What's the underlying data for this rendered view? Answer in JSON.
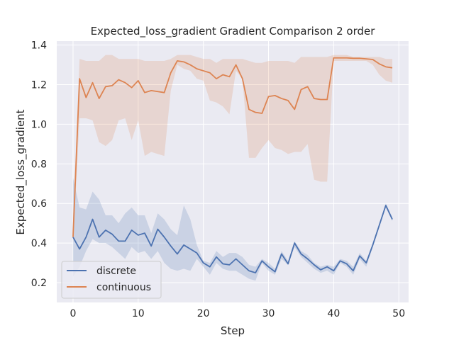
{
  "chart_data": {
    "type": "line",
    "title": "Expected_loss_gradient Gradient Comparison 2 order",
    "xlabel": "Step",
    "ylabel": "Expected_loss_gradient",
    "xlim": [
      -2.5,
      51.5
    ],
    "ylim": [
      0.1,
      1.42
    ],
    "xticks": [
      0,
      10,
      20,
      30,
      40,
      50
    ],
    "yticks": [
      0.2,
      0.4,
      0.6,
      0.8,
      1.0,
      1.2,
      1.4
    ],
    "xtick_labels": [
      "0",
      "10",
      "20",
      "30",
      "40",
      "50"
    ],
    "ytick_labels": [
      "0.2",
      "0.4",
      "0.6",
      "0.8",
      "1.0",
      "1.2",
      "1.4"
    ],
    "grid": true,
    "legend_position": "lower-left",
    "background": "#eaeaf2",
    "x": [
      0,
      1,
      2,
      3,
      4,
      5,
      6,
      7,
      8,
      9,
      10,
      11,
      12,
      13,
      14,
      15,
      16,
      17,
      18,
      19,
      20,
      21,
      22,
      23,
      24,
      25,
      26,
      27,
      28,
      29,
      30,
      31,
      32,
      33,
      34,
      35,
      36,
      37,
      38,
      39,
      40,
      41,
      42,
      43,
      44,
      45,
      46,
      47,
      48,
      49
    ],
    "series": [
      {
        "name": "discrete",
        "color": "#4c72b0",
        "values": [
          0.43,
          0.37,
          0.43,
          0.52,
          0.43,
          0.465,
          0.445,
          0.41,
          0.41,
          0.465,
          0.44,
          0.45,
          0.385,
          0.47,
          0.43,
          0.385,
          0.345,
          0.39,
          0.37,
          0.35,
          0.3,
          0.28,
          0.33,
          0.295,
          0.29,
          0.32,
          0.29,
          0.26,
          0.25,
          0.31,
          0.28,
          0.255,
          0.345,
          0.295,
          0.4,
          0.345,
          0.32,
          0.29,
          0.265,
          0.28,
          0.26,
          0.31,
          0.295,
          0.26,
          0.335,
          0.3,
          0.39,
          0.49,
          0.59,
          0.52
        ],
        "lower": [
          0.23,
          0.28,
          0.36,
          0.42,
          0.4,
          0.4,
          0.38,
          0.35,
          0.32,
          0.38,
          0.35,
          0.36,
          0.32,
          0.36,
          0.3,
          0.27,
          0.26,
          0.27,
          0.26,
          0.32,
          0.28,
          0.24,
          0.3,
          0.27,
          0.26,
          0.26,
          0.24,
          0.22,
          0.21,
          0.3,
          0.26,
          0.24,
          0.32,
          0.29,
          0.38,
          0.33,
          0.3,
          0.27,
          0.25,
          0.26,
          0.24,
          0.3,
          0.28,
          0.24,
          0.32,
          0.28,
          0.38,
          0.48,
          0.58,
          0.51
        ],
        "upper": [
          0.73,
          0.58,
          0.57,
          0.66,
          0.62,
          0.54,
          0.54,
          0.5,
          0.55,
          0.58,
          0.54,
          0.54,
          0.45,
          0.55,
          0.52,
          0.47,
          0.44,
          0.59,
          0.52,
          0.39,
          0.31,
          0.3,
          0.36,
          0.33,
          0.35,
          0.35,
          0.33,
          0.29,
          0.28,
          0.32,
          0.3,
          0.27,
          0.36,
          0.31,
          0.41,
          0.36,
          0.34,
          0.3,
          0.28,
          0.29,
          0.28,
          0.32,
          0.31,
          0.28,
          0.35,
          0.31,
          0.4,
          0.5,
          0.6,
          0.53
        ]
      },
      {
        "name": "continuous",
        "color": "#dd8452",
        "values": [
          0.43,
          1.23,
          1.135,
          1.21,
          1.13,
          1.19,
          1.195,
          1.225,
          1.21,
          1.185,
          1.22,
          1.16,
          1.17,
          1.165,
          1.16,
          1.26,
          1.32,
          1.315,
          1.3,
          1.28,
          1.27,
          1.26,
          1.23,
          1.25,
          1.24,
          1.3,
          1.23,
          1.075,
          1.06,
          1.055,
          1.14,
          1.145,
          1.13,
          1.12,
          1.075,
          1.175,
          1.19,
          1.13,
          1.125,
          1.125,
          1.335,
          1.335,
          1.335,
          1.333,
          1.333,
          1.33,
          1.327,
          1.305,
          1.29,
          1.285
        ],
        "lower": [
          0.4,
          1.03,
          1.03,
          1.02,
          0.91,
          0.89,
          0.92,
          1.02,
          1.03,
          0.92,
          1.02,
          0.84,
          0.86,
          0.85,
          0.84,
          1.17,
          1.3,
          1.28,
          1.27,
          1.23,
          1.22,
          1.12,
          1.11,
          1.09,
          1.05,
          1.27,
          1.23,
          0.83,
          0.83,
          0.88,
          0.92,
          0.88,
          0.87,
          0.85,
          0.86,
          0.86,
          0.9,
          0.72,
          0.71,
          0.71,
          1.32,
          1.32,
          1.32,
          1.32,
          1.32,
          1.32,
          1.3,
          1.25,
          1.22,
          1.21
        ],
        "upper": [
          0.53,
          1.33,
          1.32,
          1.32,
          1.32,
          1.35,
          1.35,
          1.33,
          1.33,
          1.33,
          1.33,
          1.32,
          1.32,
          1.32,
          1.32,
          1.33,
          1.35,
          1.35,
          1.35,
          1.34,
          1.33,
          1.33,
          1.31,
          1.33,
          1.33,
          1.33,
          1.33,
          1.32,
          1.31,
          1.31,
          1.32,
          1.32,
          1.32,
          1.32,
          1.31,
          1.34,
          1.34,
          1.34,
          1.34,
          1.34,
          1.35,
          1.35,
          1.35,
          1.34,
          1.34,
          1.34,
          1.34,
          1.34,
          1.33,
          1.33
        ]
      }
    ]
  }
}
